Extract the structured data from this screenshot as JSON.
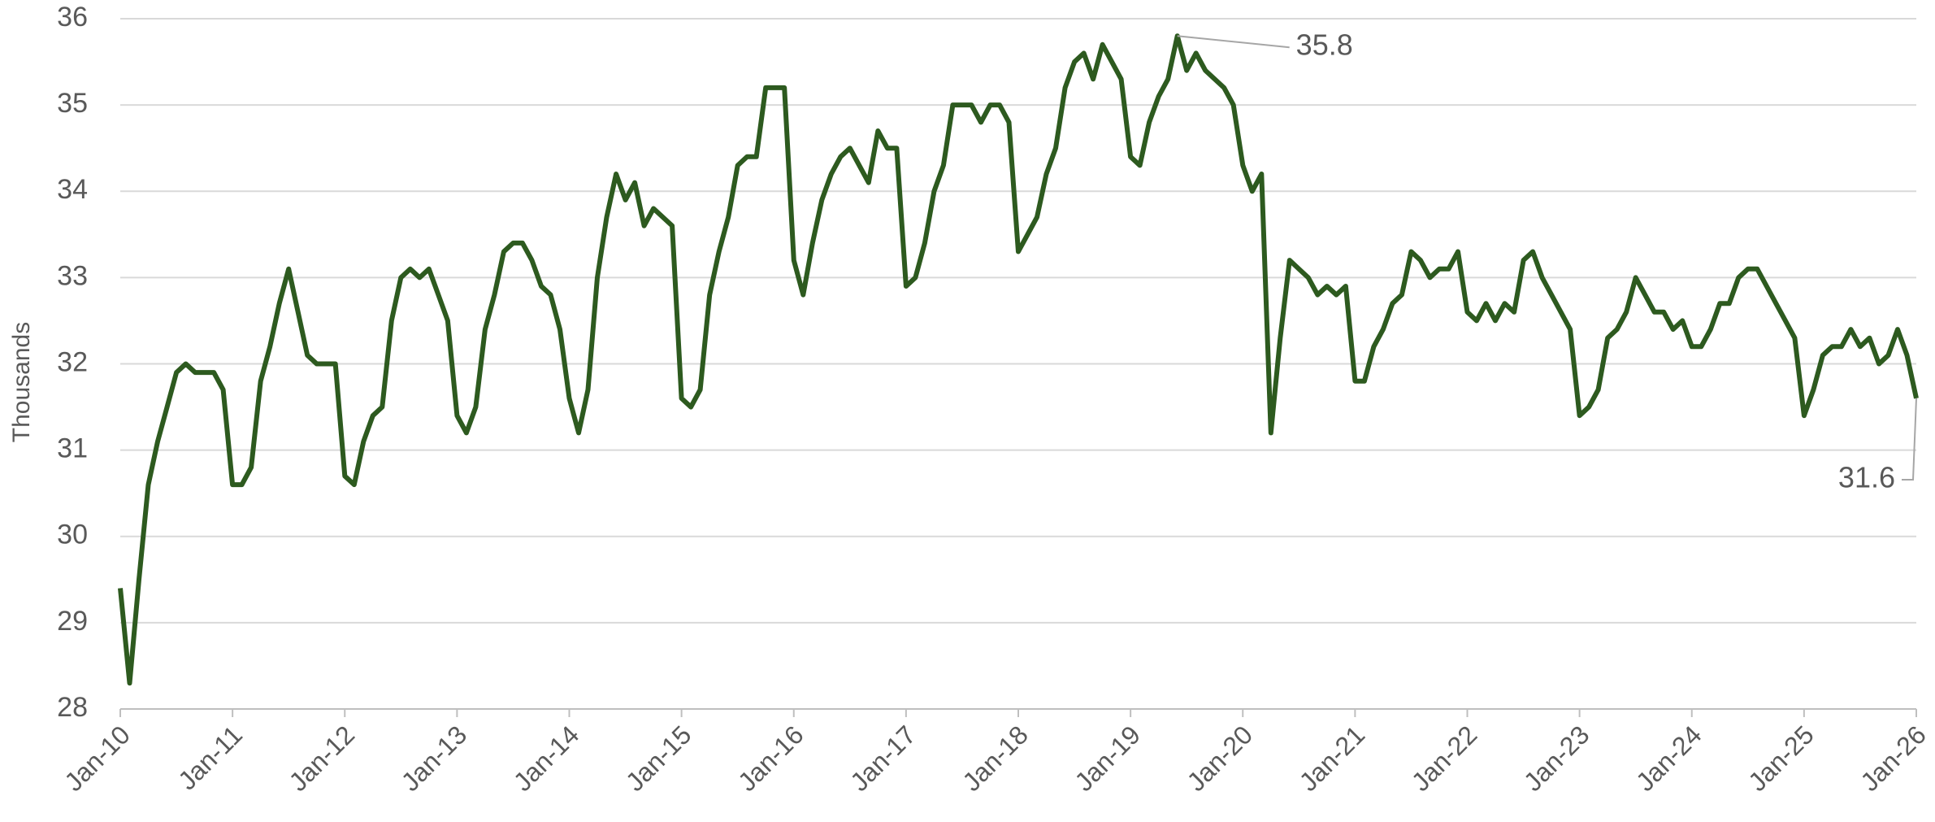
{
  "chart_data": {
    "type": "line",
    "ylabel": "Thousands",
    "categories": [
      "Jan-10",
      null,
      null,
      null,
      null,
      null,
      null,
      null,
      null,
      null,
      null,
      null,
      "Jan-11",
      null,
      null,
      null,
      null,
      null,
      null,
      null,
      null,
      null,
      null,
      null,
      "Jan-12",
      null,
      null,
      null,
      null,
      null,
      null,
      null,
      null,
      null,
      null,
      null,
      "Jan-13",
      null,
      null,
      null,
      null,
      null,
      null,
      null,
      null,
      null,
      null,
      null,
      "Jan-14",
      null,
      null,
      null,
      null,
      null,
      null,
      null,
      null,
      null,
      null,
      null,
      "Jan-15",
      null,
      null,
      null,
      null,
      null,
      null,
      null,
      null,
      null,
      null,
      null,
      "Jan-16",
      null,
      null,
      null,
      null,
      null,
      null,
      null,
      null,
      null,
      null,
      null,
      "Jan-17",
      null,
      null,
      null,
      null,
      null,
      null,
      null,
      null,
      null,
      null,
      null,
      "Jan-18",
      null,
      null,
      null,
      null,
      null,
      null,
      null,
      null,
      null,
      null,
      null,
      "Jan-19",
      null,
      null,
      null,
      null,
      null,
      null,
      null,
      null,
      null,
      null,
      null,
      "Jan-20",
      null,
      null,
      null,
      null,
      null,
      null,
      null,
      null,
      null,
      null,
      null,
      "Jan-21",
      null,
      null,
      null,
      null,
      null,
      null,
      null,
      null,
      null,
      null,
      null,
      "Jan-22",
      null,
      null,
      null,
      null,
      null,
      null,
      null,
      null,
      null,
      null,
      null,
      "Jan-23",
      null,
      null,
      null,
      null,
      null,
      null,
      null,
      null,
      null,
      null,
      null,
      "Jan-24",
      null,
      null,
      null,
      null,
      null,
      null,
      null,
      null,
      null,
      null,
      null,
      "Jan-25",
      null,
      null,
      null,
      null,
      null,
      null,
      null,
      null,
      null,
      null,
      null,
      "Jan-26"
    ],
    "series": [
      {
        "name": null,
        "color": "#2d5a1f",
        "values": [
          29.4,
          28.3,
          29.5,
          30.6,
          31.1,
          31.5,
          31.9,
          32.0,
          31.9,
          31.9,
          31.9,
          31.7,
          30.6,
          30.6,
          30.8,
          31.8,
          32.2,
          32.7,
          33.1,
          32.6,
          32.1,
          32.0,
          32.0,
          32.0,
          30.7,
          30.6,
          31.1,
          31.4,
          31.5,
          32.5,
          33.0,
          33.1,
          33.0,
          33.1,
          32.8,
          32.5,
          31.4,
          31.2,
          31.5,
          32.4,
          32.8,
          33.3,
          33.4,
          33.4,
          33.2,
          32.9,
          32.8,
          32.4,
          31.6,
          31.2,
          31.7,
          33.0,
          33.7,
          34.2,
          33.9,
          34.1,
          33.6,
          33.8,
          33.7,
          33.6,
          31.6,
          31.5,
          31.7,
          32.8,
          33.3,
          33.7,
          34.3,
          34.4,
          34.4,
          35.2,
          35.2,
          35.2,
          33.2,
          32.8,
          33.4,
          33.9,
          34.2,
          34.4,
          34.5,
          34.3,
          34.1,
          34.7,
          34.5,
          34.5,
          32.9,
          33.0,
          33.4,
          34.0,
          34.3,
          35.0,
          35.0,
          35.0,
          34.8,
          35.0,
          35.0,
          34.8,
          33.3,
          33.5,
          33.7,
          34.2,
          34.5,
          35.2,
          35.5,
          35.6,
          35.3,
          35.7,
          35.5,
          35.3,
          34.4,
          34.3,
          34.8,
          35.1,
          35.3,
          35.8,
          35.4,
          35.6,
          35.4,
          35.3,
          35.2,
          35.0,
          34.3,
          34.0,
          34.2,
          31.2,
          32.3,
          33.2,
          33.1,
          33.0,
          32.8,
          32.9,
          32.8,
          32.9,
          31.8,
          31.8,
          32.2,
          32.4,
          32.7,
          32.8,
          33.3,
          33.2,
          33.0,
          33.1,
          33.1,
          33.3,
          32.6,
          32.5,
          32.7,
          32.5,
          32.7,
          32.6,
          33.2,
          33.3,
          33.0,
          32.8,
          32.6,
          32.4,
          31.4,
          31.5,
          31.7,
          32.3,
          32.4,
          32.6,
          33.0,
          32.8,
          32.6,
          32.6,
          32.4,
          32.5,
          32.2,
          32.2,
          32.4,
          32.7,
          32.7,
          33.0,
          33.1,
          33.1,
          32.9,
          32.7,
          32.5,
          32.3,
          31.4,
          31.7,
          32.1,
          32.2,
          32.2,
          32.4,
          32.2,
          32.3,
          32.0,
          32.1,
          32.4,
          32.1,
          31.6
        ],
        "value_labels": [
          null,
          null,
          null,
          null,
          null,
          null,
          null,
          null,
          null,
          null,
          null,
          null,
          null,
          null,
          null,
          null,
          null,
          null,
          null,
          null,
          null,
          null,
          null,
          null,
          null,
          null,
          null,
          null,
          null,
          null,
          null,
          null,
          null,
          null,
          null,
          null,
          null,
          null,
          null,
          null,
          null,
          null,
          null,
          null,
          null,
          null,
          null,
          null,
          null,
          null,
          null,
          null,
          null,
          null,
          null,
          null,
          null,
          null,
          null,
          null,
          null,
          null,
          null,
          null,
          null,
          null,
          null,
          null,
          null,
          null,
          null,
          null,
          null,
          null,
          null,
          null,
          null,
          null,
          null,
          null,
          null,
          null,
          null,
          null,
          null,
          null,
          null,
          null,
          null,
          null,
          null,
          null,
          null,
          null,
          null,
          null,
          null,
          null,
          null,
          null,
          null,
          null,
          null,
          null,
          null,
          null,
          null,
          null,
          null,
          null,
          null,
          null,
          null,
          "35.8",
          null,
          null,
          null,
          null,
          null,
          null,
          null,
          null,
          null,
          null,
          null,
          null,
          null,
          null,
          null,
          null,
          null,
          null,
          null,
          null,
          null,
          null,
          null,
          null,
          null,
          null,
          null,
          null,
          null,
          null,
          null,
          null,
          null,
          null,
          null,
          null,
          null,
          null,
          null,
          null,
          null,
          null,
          null,
          null,
          null,
          null,
          null,
          null,
          null,
          null,
          null,
          null,
          null,
          null,
          null,
          null,
          null,
          null,
          null,
          null,
          null,
          null,
          null,
          null,
          null,
          null,
          null,
          null,
          null,
          null,
          null,
          null,
          null,
          null,
          null,
          null,
          null,
          null,
          "31.6"
        ]
      }
    ],
    "ylim": [
      28,
      36
    ],
    "yticks": [
      28,
      29,
      30,
      31,
      32,
      33,
      34,
      35,
      36
    ],
    "grid": true
  }
}
